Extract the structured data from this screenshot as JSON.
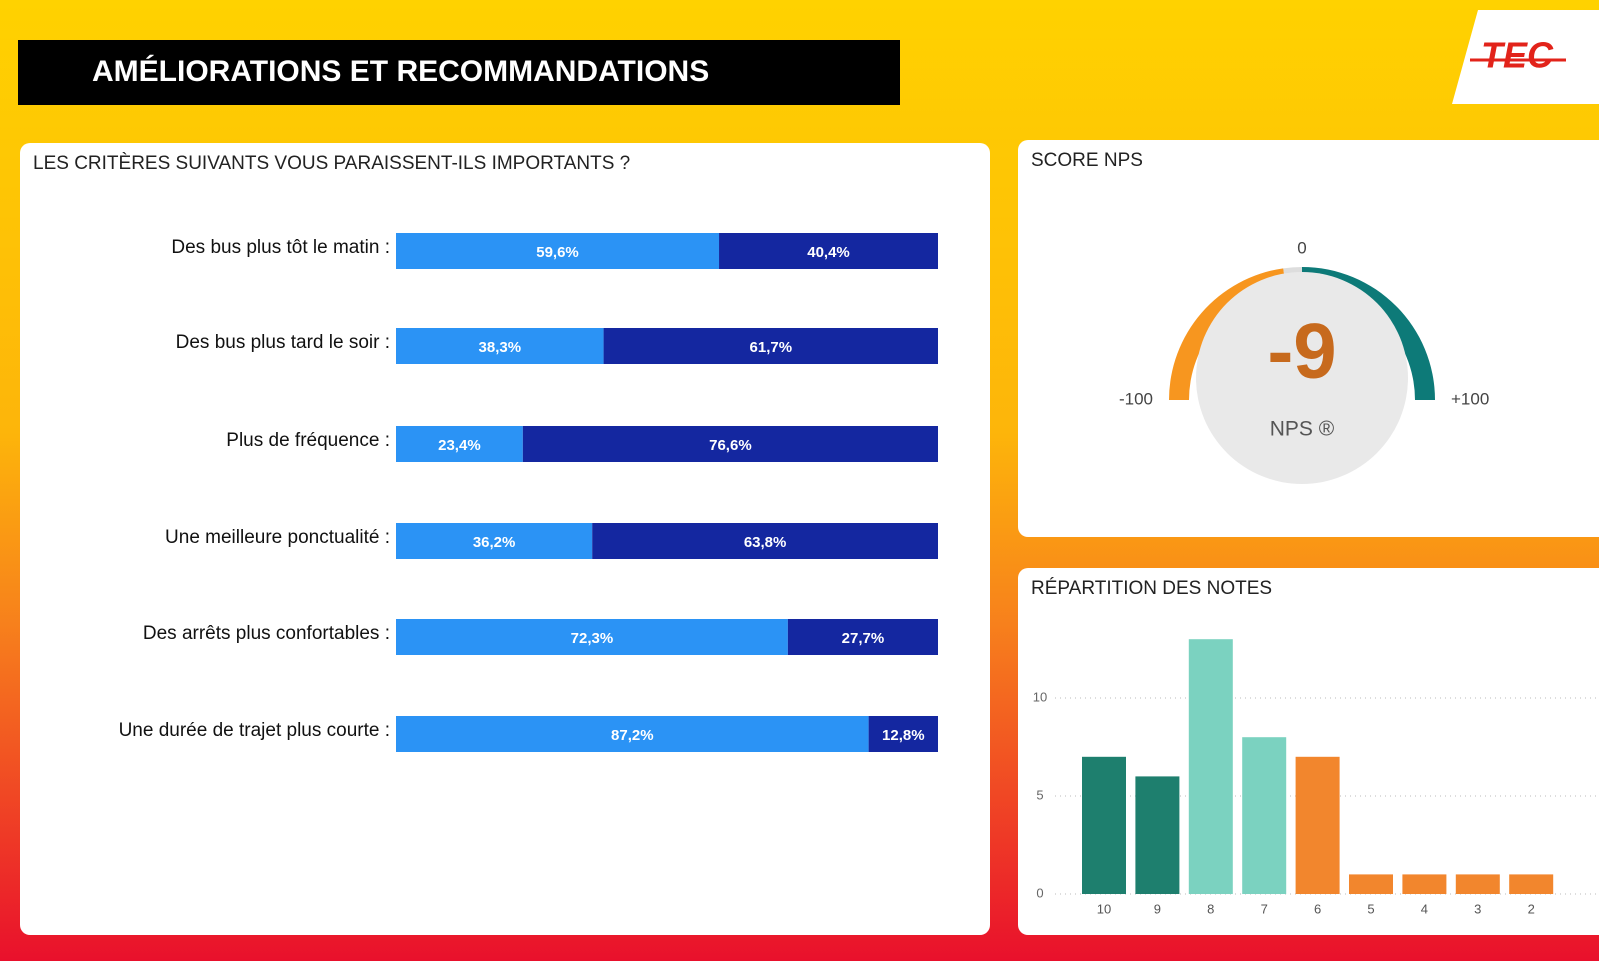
{
  "header": {
    "title": "AMÉLIORATIONS ET RECOMMANDATIONS",
    "logo": "TEC"
  },
  "chart_data": [
    {
      "type": "stacked-hbar",
      "title": "LES CRITÈRES SUIVANTS VOUS PARAISSENT-ILS IMPORTANTS ?",
      "categories": [
        "Des bus plus tôt le matin :",
        "Des bus plus tard le soir :",
        "Plus de fréquence :",
        "Une meilleure ponctualité :",
        "Des arrêts plus confortables :",
        "Une durée de trajet plus courte :"
      ],
      "xlim": [
        0,
        100
      ],
      "series": [
        {
          "color": "#2b93f5",
          "values": [
            59.6,
            38.3,
            23.4,
            36.2,
            72.3,
            87.2
          ],
          "value_labels": [
            "59,6%",
            "38,3%",
            "23,4%",
            "36,2%",
            "72,3%",
            "87,2%"
          ]
        },
        {
          "color": "#1427a0",
          "values": [
            40.4,
            61.7,
            76.6,
            63.8,
            27.7,
            12.8
          ],
          "value_labels": [
            "40,4%",
            "61,7%",
            "76,6%",
            "63,8%",
            "27,7%",
            "12,8%"
          ]
        }
      ]
    },
    {
      "type": "gauge",
      "title": "SCORE NPS",
      "value": -9,
      "label": "NPS ®",
      "lim": [
        -100,
        100
      ],
      "ticks": [
        -100,
        0,
        {
          "value": 100,
          "label": "+100"
        }
      ],
      "colors": [
        "#f7961f",
        "#0d7a78"
      ]
    },
    {
      "type": "bar",
      "title": "RÉPARTITION DES NOTES",
      "categories": [
        "10",
        "9",
        "8",
        "7",
        "6",
        "5",
        "4",
        "3",
        "2"
      ],
      "values": [
        7,
        6,
        13,
        8,
        7,
        1,
        1,
        1,
        1
      ],
      "colors": [
        "#1e7f6e",
        "#1e7f6e",
        "#7bd2c0",
        "#7bd2c0",
        "#f2862d",
        "#f2862d",
        "#f2862d",
        "#f2862d",
        "#f2862d"
      ],
      "ylim": [
        0,
        13
      ],
      "yticks": [
        0,
        5,
        10
      ],
      "grid": true
    }
  ]
}
